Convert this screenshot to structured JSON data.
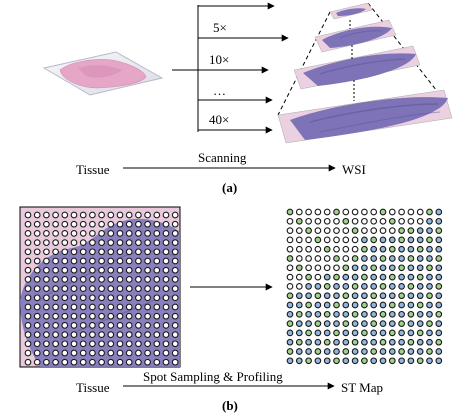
{
  "panel_a": {
    "magnifications": [
      "5×",
      "10×",
      "…",
      "40×"
    ],
    "source_label": "Tissue",
    "process_label": "Scanning",
    "target_label": "WSI",
    "caption": "(a)"
  },
  "panel_b": {
    "source_label": "Tissue",
    "process_label": "Spot Sampling & Profiling",
    "target_label": "ST Map",
    "caption": "(b)",
    "grid": {
      "rows": 17,
      "cols": 17
    }
  },
  "colors": {
    "stain_pink": "#e8bfd6",
    "stain_purple": "#8a7cc2",
    "spot_dark": "#1a1a1a",
    "spot_green": "#9fd28a",
    "spot_blue": "#8fb7e0"
  }
}
